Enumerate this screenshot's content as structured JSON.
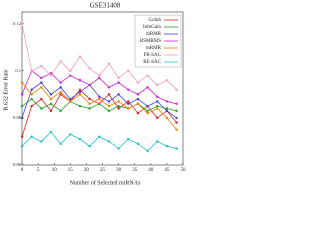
{
  "chart_data": {
    "type": "line",
    "title": "GSE31408",
    "x_label": "Number of Selected miRNAs",
    "y_label": "B.632 Error Rate",
    "x": [
      0,
      3,
      6,
      9,
      12,
      15,
      18,
      21,
      24,
      27,
      30,
      33,
      36,
      39,
      42,
      45,
      48
    ],
    "series": [
      {
        "name": "Golub",
        "color": "#e02020",
        "values": [
          0.072,
          0.085,
          0.088,
          0.083,
          0.09,
          0.087,
          0.092,
          0.088,
          0.086,
          0.09,
          0.084,
          0.087,
          0.082,
          0.085,
          0.08,
          0.083,
          0.078
        ]
      },
      {
        "name": "InfoGain",
        "color": "#20a020",
        "values": [
          0.085,
          0.088,
          0.084,
          0.086,
          0.083,
          0.087,
          0.085,
          0.084,
          0.086,
          0.083,
          0.085,
          0.084,
          0.086,
          0.083,
          0.085,
          0.084,
          0.083
        ]
      },
      {
        "name": "mRMR",
        "color": "#4040d0",
        "values": [
          0.08,
          0.092,
          0.095,
          0.09,
          0.093,
          0.088,
          0.091,
          0.094,
          0.089,
          0.087,
          0.09,
          0.086,
          0.088,
          0.085,
          0.087,
          0.083,
          0.08
        ]
      },
      {
        "name": "RSMRMS",
        "color": "#d020d0",
        "values": [
          0.09,
          0.1,
          0.097,
          0.099,
          0.095,
          0.098,
          0.096,
          0.094,
          0.097,
          0.093,
          0.095,
          0.092,
          0.09,
          0.093,
          0.089,
          0.087,
          0.086
        ]
      },
      {
        "name": "mRMR",
        "color": "#f08000",
        "values": [
          0.095,
          0.09,
          0.093,
          0.088,
          0.091,
          0.087,
          0.09,
          0.086,
          0.088,
          0.085,
          0.087,
          0.084,
          0.086,
          0.082,
          0.084,
          0.08,
          0.075
        ]
      },
      {
        "name": "FR-SAC",
        "color": "#f0a0c0",
        "values": [
          0.12,
          0.1,
          0.102,
          0.098,
          0.104,
          0.1,
          0.106,
          0.101,
          0.098,
          0.103,
          0.097,
          0.1,
          0.095,
          0.098,
          0.094,
          0.096,
          0.092
        ]
      },
      {
        "name": "RE-SAC",
        "color": "#20c0c0",
        "values": [
          0.068,
          0.072,
          0.07,
          0.074,
          0.069,
          0.073,
          0.071,
          0.068,
          0.072,
          0.07,
          0.067,
          0.071,
          0.069,
          0.066,
          0.07,
          0.068,
          0.067
        ]
      }
    ],
    "xlim": [
      0,
      50
    ],
    "xticks": [
      0,
      5,
      10,
      15,
      20,
      25,
      30,
      35,
      40,
      45,
      50
    ],
    "ylim": [
      0.06,
      0.125
    ],
    "yticks": [
      0.06,
      0.08,
      0.1,
      0.12
    ],
    "legend": "upper right"
  }
}
